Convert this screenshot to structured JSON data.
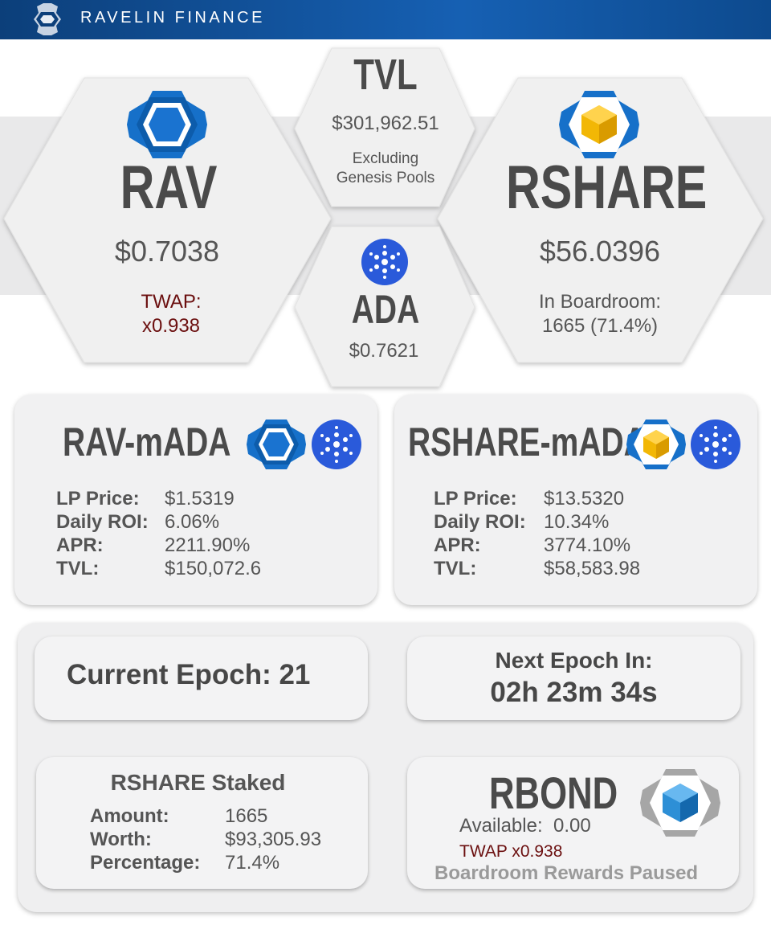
{
  "header": {
    "brand": "RAVELIN FINANCE"
  },
  "tokens": {
    "rav": {
      "name": "RAV",
      "price": "$0.7038",
      "twap_label": "TWAP:",
      "twap_value": "x0.938"
    },
    "tvl": {
      "title": "TVL",
      "value": "$301,962.51",
      "note_line1": "Excluding",
      "note_line2": "Genesis Pools"
    },
    "ada": {
      "name": "ADA",
      "price": "$0.7621"
    },
    "rshare": {
      "name": "RSHARE",
      "price": "$56.0396",
      "boardroom_label": "In Boardroom:",
      "boardroom_value": "1665 (71.4%)"
    }
  },
  "pools": [
    {
      "name": "RAV-mADA",
      "lp_price_label": "LP Price:",
      "lp_price": "$1.5319",
      "roi_label": "Daily ROI:",
      "roi": "6.06%",
      "apr_label": "APR:",
      "apr": "2211.90%",
      "tvl_label": "TVL:",
      "tvl": "$150,072.6"
    },
    {
      "name": "RSHARE-mADA",
      "lp_price_label": "LP Price:",
      "lp_price": "$13.5320",
      "roi_label": "Daily ROI:",
      "roi": "10.34%",
      "apr_label": "APR:",
      "apr": "3774.10%",
      "tvl_label": "TVL:",
      "tvl": "$58,583.98"
    }
  ],
  "epoch": {
    "current": "Current Epoch: 21",
    "next_label": "Next Epoch In:",
    "next_value": "02h 23m 34s"
  },
  "staked": {
    "title": "RSHARE Staked",
    "amount_label": "Amount:",
    "amount": "1665",
    "worth_label": "Worth:",
    "worth": "$93,305.93",
    "pct_label": "Percentage:",
    "pct": "71.4%"
  },
  "rbond": {
    "title": "RBOND",
    "available": "Available:  0.00",
    "twap": "TWAP x0.938",
    "status": "Boardroom Rewards Paused"
  },
  "colors": {
    "brand_blue": "#1660b3",
    "hex_bg": "#efefef",
    "twap_red": "#6b0f0f",
    "cardano_blue": "#2a5ada",
    "rshare_gold": "#f2b705"
  },
  "icons": [
    "ravelin-logo-icon",
    "rav-icon",
    "rshare-icon",
    "ada-icon",
    "rbond-icon"
  ]
}
